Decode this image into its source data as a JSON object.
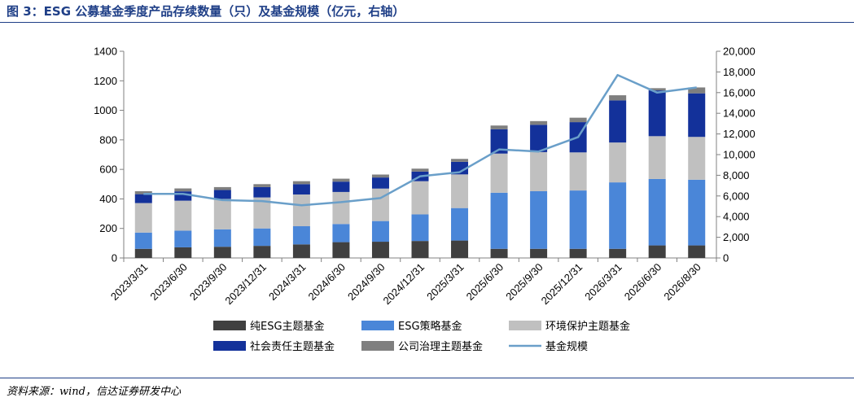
{
  "header": {
    "title": "图 3：ESG 公募基金季度产品存续数量（只）及基金规模（亿元，右轴）"
  },
  "footer": {
    "source": "资料来源：wind，信达证券研发中心"
  },
  "colors": {
    "title": "#1f3f87",
    "rule": "#1f3f87"
  },
  "chart_data": {
    "type": "bar",
    "stacked": true,
    "categories": [
      "2023/3/31",
      "2023/6/30",
      "2023/9/30",
      "2023/12/31",
      "2024/3/31",
      "2024/6/30",
      "2024/9/30",
      "2024/12/31",
      "2025/3/31",
      "2025/6/30",
      "2025/9/30",
      "2025/12/31",
      "2026/3/31",
      "2026/6/30",
      "2026/8/30"
    ],
    "series": [
      {
        "name": "纯ESG主题基金",
        "color": "#404040",
        "values": [
          62,
          72,
          76,
          82,
          92,
          107,
          110,
          115,
          118,
          62,
          62,
          62,
          62,
          85,
          85
        ]
      },
      {
        "name": "ESG策略基金",
        "color": "#4a86d8",
        "values": [
          110,
          113,
          118,
          118,
          123,
          123,
          140,
          180,
          220,
          380,
          390,
          395,
          450,
          450,
          445
        ]
      },
      {
        "name": "环境保护主题基金",
        "color": "#c0c0c0",
        "values": [
          200,
          203,
          206,
          210,
          215,
          217,
          220,
          225,
          228,
          265,
          265,
          258,
          270,
          290,
          290
        ]
      },
      {
        "name": "社会责任主题基金",
        "color": "#13319a",
        "values": [
          60,
          63,
          60,
          70,
          70,
          70,
          75,
          65,
          85,
          165,
          185,
          205,
          285,
          310,
          295
        ]
      },
      {
        "name": "公司治理主题基金",
        "color": "#7f7f7f",
        "values": [
          20,
          20,
          20,
          20,
          20,
          20,
          20,
          20,
          20,
          25,
          25,
          30,
          35,
          15,
          40
        ]
      },
      {
        "name": "基金规模",
        "type": "line",
        "axis": "right",
        "color": "#6a9fc9",
        "values": [
          6200,
          6200,
          5600,
          5500,
          5100,
          5400,
          5800,
          7900,
          8300,
          10500,
          10300,
          11700,
          17700,
          16000,
          16500
        ]
      }
    ],
    "y_left": {
      "min": 0,
      "max": 1400,
      "ticks": [
        "0",
        "200",
        "400",
        "600",
        "800",
        "1000",
        "1200",
        "1400"
      ]
    },
    "y_right": {
      "min": 0,
      "max": 20000,
      "ticks": [
        "0",
        "2,000",
        "4,000",
        "6,000",
        "8,000",
        "10,000",
        "12,000",
        "14,000",
        "16,000",
        "18,000",
        "20,000"
      ]
    },
    "grid": false,
    "legend_position": "bottom"
  }
}
